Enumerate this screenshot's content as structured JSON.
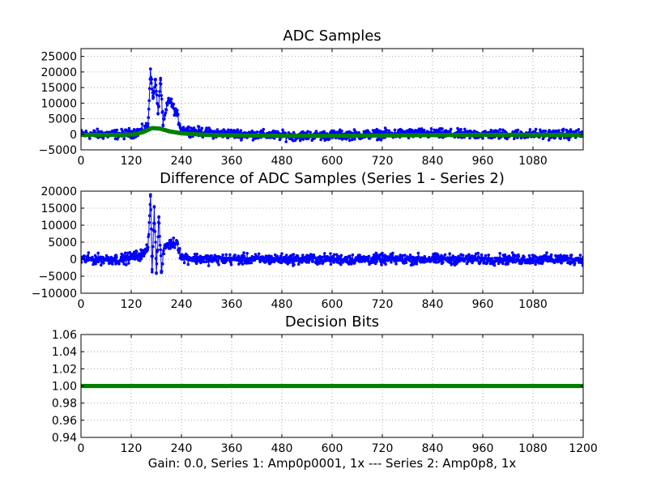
{
  "figure": {
    "footer": "Gain: 0.0, Series 1: Amp0p0001, 1x --- Series 2: Amp0p8, 1x",
    "colors": {
      "series1": "#0000ff",
      "series2": "#008000",
      "grid": "#999999"
    }
  },
  "chart_data": [
    {
      "type": "line",
      "title": "ADC Samples",
      "xlim": [
        0,
        1200
      ],
      "ylim": [
        -5000,
        27500
      ],
      "xticks": [
        0,
        120,
        240,
        360,
        480,
        600,
        720,
        840,
        960,
        1080
      ],
      "yticks": [
        -5000,
        0,
        5000,
        10000,
        15000,
        20000,
        25000
      ],
      "grid": true,
      "series": [
        {
          "color": "#0000ff",
          "marker": "dot",
          "noise_amplitude": 1500,
          "x": [
            0,
            100,
            140,
            160,
            166,
            172,
            178,
            184,
            190,
            196,
            210,
            230,
            240,
            300,
            400,
            500,
            600,
            700,
            800,
            900,
            1000,
            1100,
            1200
          ],
          "y": [
            0,
            0,
            800,
            2500,
            21000,
            11500,
            17500,
            6500,
            18000,
            3000,
            11500,
            6000,
            1500,
            500,
            0,
            -500,
            -300,
            0,
            300,
            0,
            0,
            0,
            0
          ]
        },
        {
          "color": "#008000",
          "marker": "dot",
          "x": [
            0,
            100,
            130,
            150,
            170,
            190,
            210,
            240,
            300,
            400,
            500,
            600,
            700,
            800,
            900,
            1000,
            1100,
            1200
          ],
          "y": [
            -200,
            -200,
            0,
            800,
            2000,
            1800,
            1000,
            300,
            -200,
            -400,
            -500,
            -500,
            -400,
            -300,
            -200,
            -200,
            -200,
            -200
          ]
        }
      ]
    },
    {
      "type": "line",
      "title": "Difference of ADC Samples (Series 1 - Series 2)",
      "xlim": [
        0,
        1200
      ],
      "ylim": [
        -10000,
        20000
      ],
      "xticks": [
        0,
        120,
        240,
        360,
        480,
        600,
        720,
        840,
        960,
        1080
      ],
      "yticks": [
        -10000,
        -5000,
        0,
        5000,
        10000,
        15000,
        20000
      ],
      "grid": true,
      "series": [
        {
          "color": "#0000ff",
          "marker": "dot",
          "noise_amplitude": 1500,
          "x": [
            0,
            100,
            150,
            160,
            166,
            170,
            175,
            180,
            186,
            192,
            200,
            230,
            240,
            300,
            400,
            500,
            600,
            700,
            800,
            900,
            1000,
            1100,
            1200
          ],
          "y": [
            0,
            0,
            1500,
            3500,
            19000,
            -3000,
            15500,
            -4000,
            12500,
            -3500,
            4000,
            5000,
            500,
            0,
            0,
            0,
            0,
            0,
            0,
            0,
            0,
            0,
            0
          ]
        }
      ]
    },
    {
      "type": "line",
      "title": "Decision Bits",
      "xlim": [
        0,
        1200
      ],
      "ylim": [
        0.94,
        1.06
      ],
      "xticks": [
        0,
        120,
        240,
        360,
        480,
        600,
        720,
        840,
        960,
        1080,
        1200
      ],
      "yticks": [
        0.94,
        0.96,
        0.98,
        1.0,
        1.02,
        1.04,
        1.06
      ],
      "grid": true,
      "series": [
        {
          "color": "#008000",
          "marker": "dot",
          "x": [
            0,
            1200
          ],
          "y": [
            1.0,
            1.0
          ]
        }
      ]
    }
  ]
}
